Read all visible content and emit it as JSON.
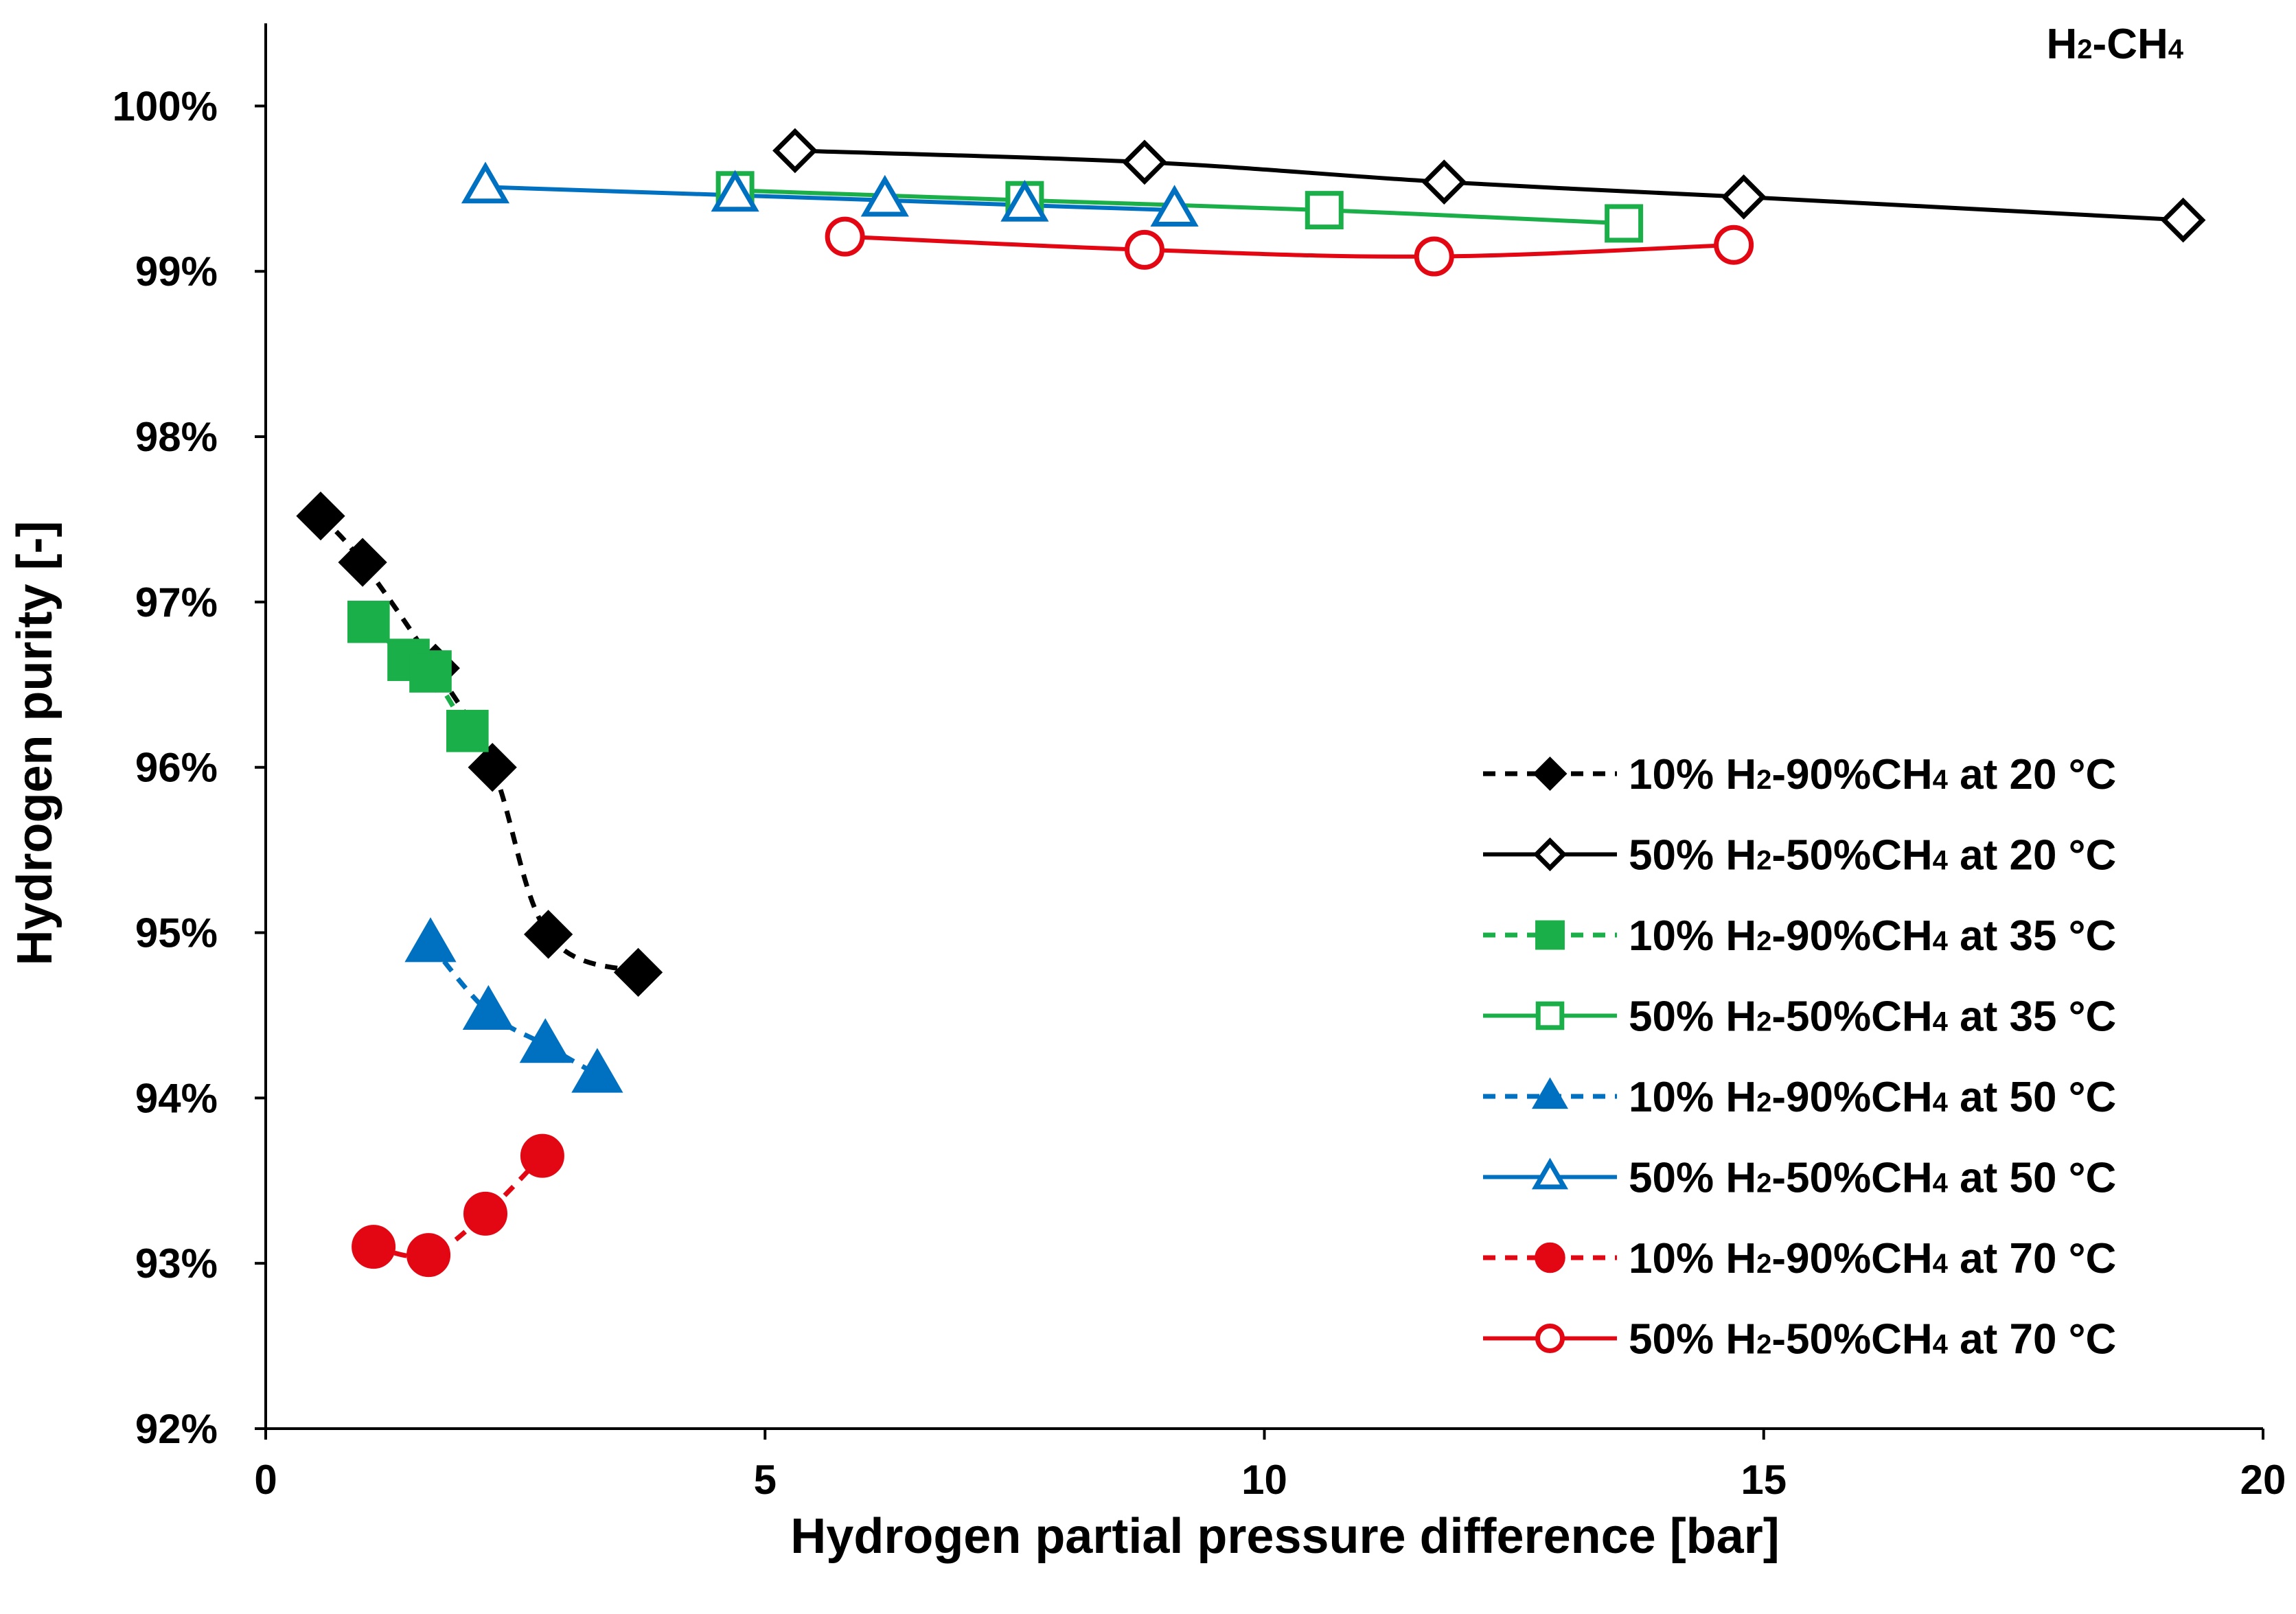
{
  "chart_data": {
    "type": "scatter",
    "title": "H2-CH4",
    "xlabel": "Hydrogen partial pressure difference [bar]",
    "ylabel": "Hydrogen purity [-]",
    "xlim": [
      0,
      20
    ],
    "ylim": [
      92,
      100.5
    ],
    "xticks": [
      0,
      5,
      10,
      15,
      20
    ],
    "yticks": [
      92,
      93,
      94,
      95,
      96,
      97,
      98,
      99,
      100
    ],
    "ytick_suffix": "%",
    "grid": false,
    "legend_position": "right",
    "series": [
      {
        "name": "10% H2-90%CH4 at 20 °C",
        "legend_parts": [
          "10% H",
          "2",
          "-90%CH",
          "4",
          " at 20 °C"
        ],
        "color": "#000000",
        "marker": "diamond",
        "filled": true,
        "dashed": true,
        "x": [
          0.55,
          0.97,
          1.7,
          2.27,
          2.83,
          3.73
        ],
        "y": [
          97.52,
          97.24,
          96.6,
          96.0,
          94.99,
          94.76
        ]
      },
      {
        "name": "50% H2-50%CH4 at 20 °C",
        "legend_parts": [
          "50% H",
          "2",
          "-50%CH",
          "4",
          " at 20 °C"
        ],
        "color": "#000000",
        "marker": "diamond",
        "filled": false,
        "dashed": false,
        "x": [
          5.3,
          8.8,
          11.8,
          14.8,
          19.2
        ],
        "y": [
          99.73,
          99.66,
          99.54,
          99.45,
          99.31
        ]
      },
      {
        "name": "10% H2-90%CH4 at 35 °C",
        "legend_parts": [
          "10% H",
          "2",
          "-90%CH",
          "4",
          " at 35 °C"
        ],
        "color": "#1aaf48",
        "marker": "square",
        "filled": true,
        "dashed": true,
        "x": [
          1.03,
          1.43,
          1.65,
          2.02
        ],
        "y": [
          96.88,
          96.65,
          96.58,
          96.22
        ]
      },
      {
        "name": "50% H2-50%CH4 at 35 °C",
        "legend_parts": [
          "50% H",
          "2",
          "-50%CH",
          "4",
          " at 35 °C"
        ],
        "color": "#1aaf48",
        "marker": "square",
        "filled": false,
        "dashed": false,
        "x": [
          4.7,
          7.6,
          10.6,
          13.6
        ],
        "y": [
          99.49,
          99.43,
          99.37,
          99.29
        ]
      },
      {
        "name": "10% H2-90%CH4 at 50 °C",
        "legend_parts": [
          "10% H",
          "2",
          "-90%CH",
          "4",
          " at 50 °C"
        ],
        "color": "#0070c0",
        "marker": "triangle",
        "filled": true,
        "dashed": true,
        "x": [
          1.65,
          2.23,
          2.8,
          3.32
        ],
        "y": [
          94.93,
          94.52,
          94.32,
          94.14
        ]
      },
      {
        "name": "50% H2-50%CH4 at 50 °C",
        "legend_parts": [
          "50% H",
          "2",
          "-50%CH",
          "4",
          " at 50 °C"
        ],
        "color": "#0070c0",
        "marker": "triangle",
        "filled": false,
        "dashed": false,
        "x": [
          2.2,
          4.7,
          6.2,
          7.6,
          9.1
        ],
        "y": [
          99.51,
          99.46,
          99.43,
          99.4,
          99.37
        ]
      },
      {
        "name": "10% H2-90%CH4 at 70 °C",
        "legend_parts": [
          "10% H",
          "2",
          "-90%CH",
          "4",
          " at 70 °C"
        ],
        "color": "#e30613",
        "marker": "circle",
        "filled": true,
        "dashed": true,
        "x": [
          1.08,
          1.63,
          2.2,
          2.77
        ],
        "y": [
          93.1,
          93.05,
          93.3,
          93.65
        ]
      },
      {
        "name": "50% H2-50%CH4 at 70 °C",
        "legend_parts": [
          "50% H",
          "2",
          "-50%CH",
          "4",
          " at 70 °C"
        ],
        "color": "#e30613",
        "marker": "circle",
        "filled": false,
        "dashed": false,
        "x": [
          5.8,
          8.8,
          11.7,
          14.7
        ],
        "y": [
          99.21,
          99.13,
          99.09,
          99.16
        ]
      }
    ]
  }
}
